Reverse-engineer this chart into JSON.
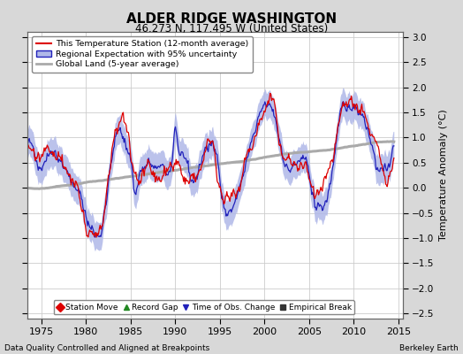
{
  "title": "ALDER RIDGE WASHINGTON",
  "subtitle": "46.273 N, 117.495 W (United States)",
  "ylabel": "Temperature Anomaly (°C)",
  "xlabel_left": "Data Quality Controlled and Aligned at Breakpoints",
  "xlabel_right": "Berkeley Earth",
  "ylim": [
    -2.6,
    3.1
  ],
  "xlim": [
    1973.5,
    2015.5
  ],
  "xticks": [
    1975,
    1980,
    1985,
    1990,
    1995,
    2000,
    2005,
    2010,
    2015
  ],
  "yticks": [
    -2.5,
    -2,
    -1.5,
    -1,
    -0.5,
    0,
    0.5,
    1,
    1.5,
    2,
    2.5,
    3
  ],
  "bg_color": "#d8d8d8",
  "plot_bg_color": "#ffffff",
  "station_color": "#dd0000",
  "regional_color": "#2222bb",
  "regional_fill_color": "#b0b8e8",
  "global_color": "#aaaaaa",
  "seed": 42,
  "n_months": 492,
  "start_year": 1973.5,
  "legend_station": "This Temperature Station (12-month average)",
  "legend_regional": "Regional Expectation with 95% uncertainty",
  "legend_global": "Global Land (5-year average)",
  "marker_labels": [
    "Station Move",
    "Record Gap",
    "Time of Obs. Change",
    "Empirical Break"
  ],
  "marker_colors": [
    "#dd0000",
    "#228822",
    "#2222bb",
    "#333333"
  ],
  "marker_symbols": [
    "D",
    "^",
    "v",
    "s"
  ]
}
